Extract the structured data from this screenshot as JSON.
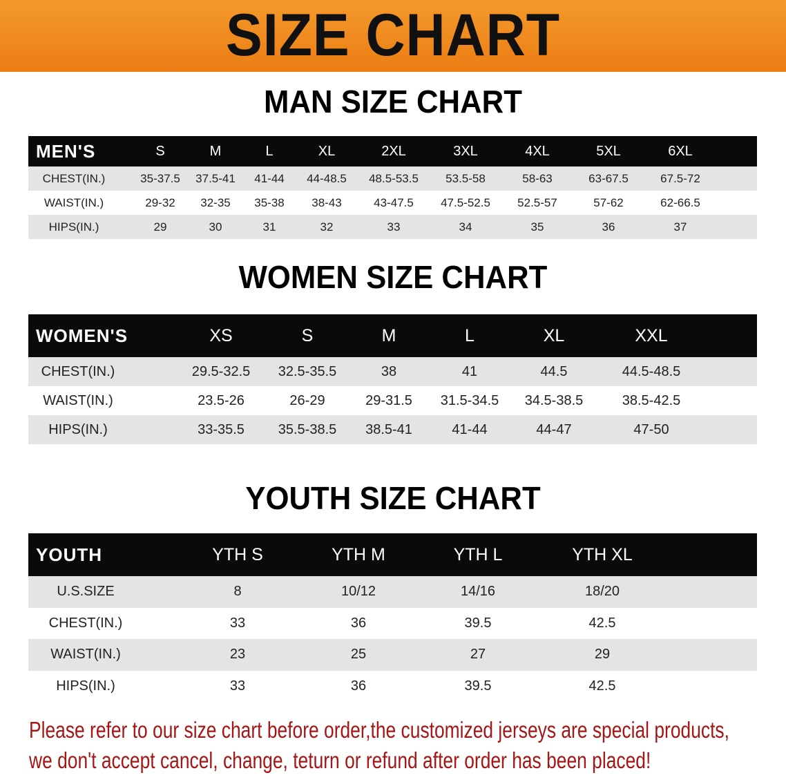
{
  "banner": {
    "title": "SIZE CHART",
    "color": "#ef8a1c"
  },
  "men": {
    "title": "MAN SIZE CHART",
    "header": [
      "MEN'S",
      "S",
      "M",
      "L",
      "XL",
      "2XL",
      "3XL",
      "4XL",
      "5XL",
      "6XL"
    ],
    "rows": [
      [
        "CHEST(IN.)",
        "35-37.5",
        "37.5-41",
        "41-44",
        "44-48.5",
        "48.5-53.5",
        "53.5-58",
        "58-63",
        "63-67.5",
        "67.5-72"
      ],
      [
        "WAIST(IN.)",
        "29-32",
        "32-35",
        "35-38",
        "38-43",
        "43-47.5",
        "47.5-52.5",
        "52.5-57",
        "57-62",
        "62-66.5"
      ],
      [
        "HIPS(IN.)",
        "29",
        "30",
        "31",
        "32",
        "33",
        "34",
        "35",
        "36",
        "37"
      ]
    ]
  },
  "women": {
    "title": "WOMEN SIZE CHART",
    "header": [
      "WOMEN'S",
      "XS",
      "S",
      "M",
      "L",
      "XL",
      "XXL"
    ],
    "rows": [
      [
        "CHEST(IN.)",
        "29.5-32.5",
        "32.5-35.5",
        "38",
        "41",
        "44.5",
        "44.5-48.5"
      ],
      [
        "WAIST(IN.)",
        "23.5-26",
        "26-29",
        "29-31.5",
        "31.5-34.5",
        "34.5-38.5",
        "38.5-42.5"
      ],
      [
        "HIPS(IN.)",
        "33-35.5",
        "35.5-38.5",
        "38.5-41",
        "41-44",
        "44-47",
        "47-50"
      ]
    ]
  },
  "youth": {
    "title": "YOUTH SIZE CHART",
    "header": [
      "YOUTH",
      "YTH S",
      "YTH M",
      "YTH L",
      "YTH XL"
    ],
    "rows": [
      [
        "U.S.SIZE",
        "8",
        "10/12",
        "14/16",
        "18/20"
      ],
      [
        "CHEST(IN.)",
        "33",
        "36",
        "39.5",
        "42.5"
      ],
      [
        "WAIST(IN.)",
        "23",
        "25",
        "27",
        "29"
      ],
      [
        "HIPS(IN.)",
        "33",
        "36",
        "39.5",
        "42.5"
      ]
    ]
  },
  "footer": {
    "line1": "Please refer to our size chart before order,the customized jerseys are special products,",
    "line2": "we don't accept cancel, change, teturn or refund after order has been placed!",
    "color": "#a51616"
  }
}
